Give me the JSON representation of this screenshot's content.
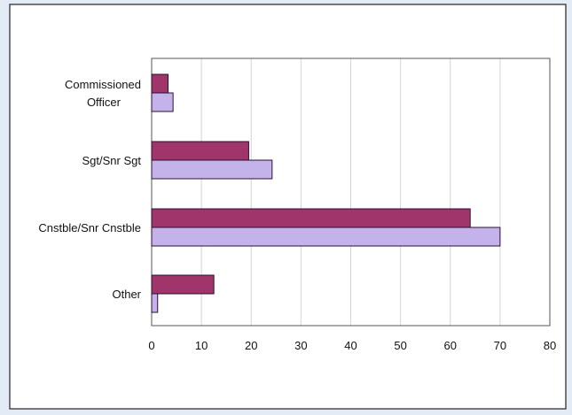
{
  "chart_data": {
    "type": "bar",
    "orientation": "horizontal",
    "categories": [
      "Commissioned Officer",
      "Sgt/Snr Sgt",
      "Cnstble/Snr Cnstble",
      "Other"
    ],
    "category_lines": [
      [
        "Commissioned",
        "Officer"
      ],
      [
        "Sgt/Snr Sgt"
      ],
      [
        "Cnstble/Snr Cnstble"
      ],
      [
        "Other"
      ]
    ],
    "series": [
      {
        "values": [
          3.3,
          19.5,
          64,
          12.5
        ],
        "color": "#a0356b"
      },
      {
        "values": [
          4.3,
          24.2,
          70,
          1.2
        ],
        "color": "#c3b3ea"
      }
    ],
    "xlim": [
      0,
      80
    ],
    "xticks": [
      0,
      10,
      20,
      30,
      40,
      50,
      60,
      70,
      80
    ],
    "title": "",
    "xlabel": "",
    "ylabel": "",
    "grid": "vertical",
    "legend": "none",
    "colors": {
      "page_background": "#e3ebf6",
      "frame_background": "#ffffff",
      "frame_border": "#222222",
      "gridline": "#d4d4d4",
      "bar_outline": "#2b1030"
    }
  }
}
